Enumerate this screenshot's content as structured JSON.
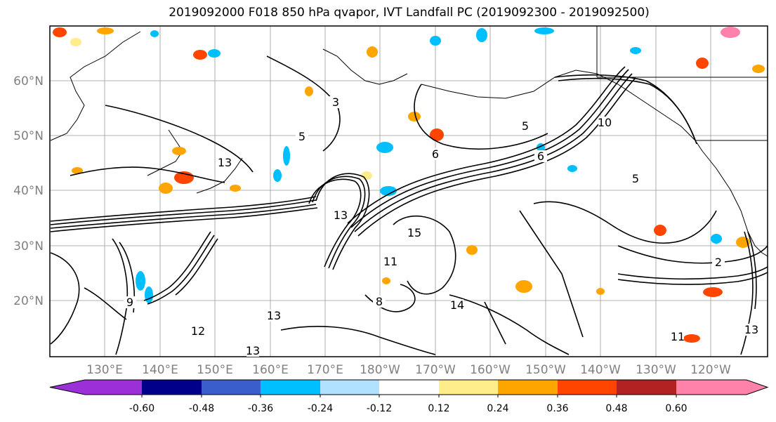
{
  "title": "2019092000 F018 850 hPa qvapor, IVT Landfall PC (2019092300 - 2019092500)",
  "lat_labels": [
    "60°N",
    "50°N",
    "40°N",
    "30°N",
    "20°N"
  ],
  "lon_labels": [
    "130°E",
    "140°E",
    "150°E",
    "160°E",
    "170°E",
    "180°W",
    "170°W",
    "160°W",
    "150°W",
    "140°W",
    "130°W",
    "120°W"
  ],
  "contour_labels": [
    "5",
    "6",
    "3",
    "13",
    "15",
    "11",
    "14",
    "12",
    "10",
    "9",
    "8",
    "2"
  ],
  "colorbar": {
    "ticks": [
      "-0.60",
      "-0.48",
      "-0.36",
      "-0.24",
      "-0.12",
      "0.12",
      "0.24",
      "0.36",
      "0.48",
      "0.60"
    ],
    "colors": [
      "#9b30d9",
      "#00008b",
      "#3a5fcd",
      "#00bfff",
      "#b0e2ff",
      "#ffffff",
      "#ffec8b",
      "#ffa500",
      "#ff4500",
      "#b22222",
      "#ff82ab"
    ]
  }
}
